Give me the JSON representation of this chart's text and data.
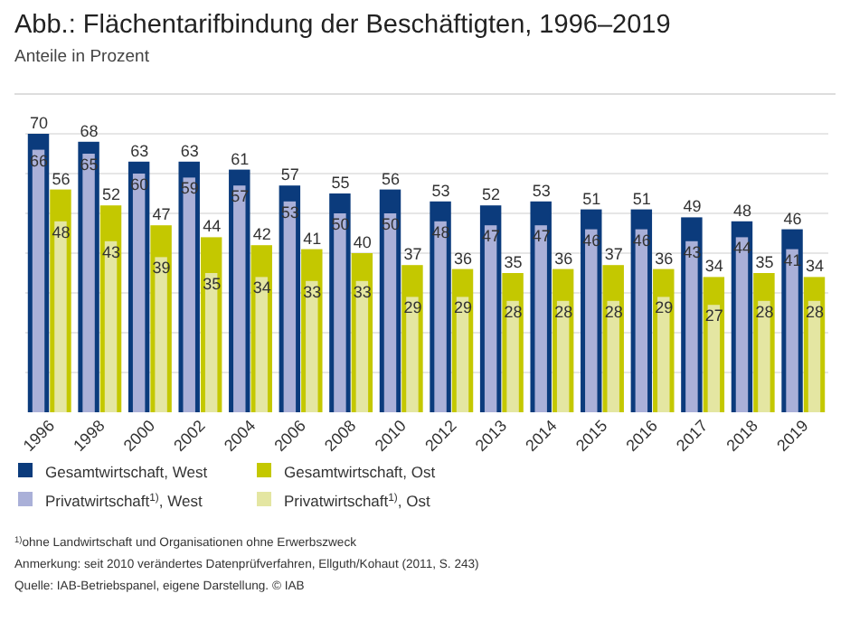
{
  "chart_data": {
    "type": "bar",
    "title": "Abb.: Flächentarifbindung der Beschäftigten, 1996–2019",
    "subtitle": "Anteile in Prozent",
    "categories": [
      "1996",
      "1998",
      "2000",
      "2002",
      "2004",
      "2006",
      "2008",
      "2010",
      "2012",
      "2013",
      "2014",
      "2015",
      "2016",
      "2017",
      "2018",
      "2019"
    ],
    "series": [
      {
        "name": "Gesamtwirtschaft, West",
        "color": "#0b3b7c",
        "values": [
          70,
          68,
          63,
          63,
          61,
          57,
          55,
          56,
          53,
          52,
          53,
          51,
          51,
          49,
          48,
          46
        ]
      },
      {
        "name": "Privatwirtschaft$^{1)}$, West",
        "color": "#aab0d8",
        "values": [
          66,
          65,
          60,
          59,
          57,
          53,
          50,
          50,
          48,
          47,
          47,
          46,
          46,
          43,
          44,
          41
        ]
      },
      {
        "name": "Gesamtwirtschaft, Ost",
        "color": "#c4c800",
        "values": [
          56,
          52,
          47,
          44,
          42,
          41,
          40,
          37,
          36,
          35,
          36,
          37,
          36,
          34,
          35,
          34
        ]
      },
      {
        "name": "Privatwirtschaft$^{1)}$, Ost",
        "color": "#e4e6a2",
        "values": [
          48,
          43,
          39,
          35,
          34,
          33,
          33,
          29,
          29,
          28,
          28,
          28,
          29,
          27,
          28,
          28
        ]
      }
    ],
    "ylim": [
      0,
      70
    ],
    "yticks": [
      {
        "value": 10,
        "label": null
      },
      {
        "value": 20,
        "label": null
      },
      {
        "value": 30,
        "label": null
      },
      {
        "value": 40,
        "label": null
      },
      {
        "value": 50,
        "label": null
      },
      {
        "value": 60,
        "label": null
      },
      {
        "value": 70,
        "label": null
      }
    ],
    "tick_labels": "x",
    "grid": "y",
    "data_labels": true,
    "legend": "bottom",
    "annotations": [
      "$^{1)}$ohne Landwirtschaft und Organisationen ohne Erwerbszweck",
      "Anmerkung: seit 2010 verändertes Datenprüfverfahren, Ellguth/Kohaut (2011, S. 243)",
      "Quelle: IAB-Betriebspanel, eigene Darstellung. © IAB"
    ]
  }
}
